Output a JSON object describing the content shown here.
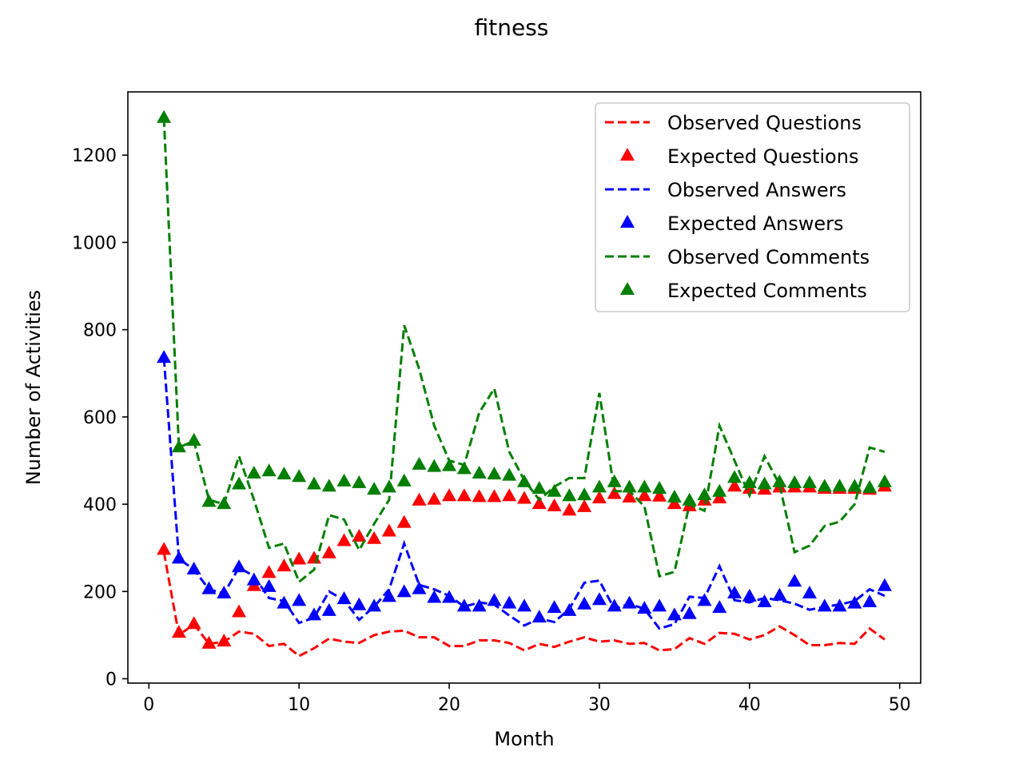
{
  "chart_data": {
    "type": "line",
    "title": "fitness",
    "xlabel": "Month",
    "ylabel": "Number of Activities",
    "xlim": [
      -1.4,
      51.4
    ],
    "ylim": [
      -10,
      1345
    ],
    "xticks": [
      0,
      10,
      20,
      30,
      40,
      50
    ],
    "yticks": [
      0,
      200,
      400,
      600,
      800,
      1000,
      1200
    ],
    "grid": false,
    "legend_position": "top-right",
    "x": [
      1,
      2,
      3,
      4,
      5,
      6,
      7,
      8,
      9,
      10,
      11,
      12,
      13,
      14,
      15,
      16,
      17,
      18,
      19,
      20,
      21,
      22,
      23,
      24,
      25,
      26,
      27,
      28,
      29,
      30,
      31,
      32,
      33,
      34,
      35,
      36,
      37,
      38,
      39,
      40,
      41,
      42,
      43,
      44,
      45,
      46,
      47,
      48,
      49
    ],
    "series": [
      {
        "name": "Observed Questions",
        "style": "dashed",
        "color": "#ff0000",
        "values": [
          290,
          100,
          125,
          80,
          85,
          108,
          103,
          75,
          80,
          52,
          70,
          92,
          85,
          82,
          100,
          108,
          110,
          95,
          95,
          75,
          75,
          88,
          88,
          82,
          65,
          80,
          73,
          85,
          95,
          85,
          88,
          80,
          82,
          65,
          68,
          93,
          80,
          105,
          103,
          90,
          100,
          120,
          100,
          77,
          77,
          82,
          80,
          115,
          90
        ]
      },
      {
        "name": "Expected Questions",
        "style": "marker",
        "color": "#ff0000",
        "values": [
          295,
          105,
          125,
          80,
          85,
          152,
          212,
          242,
          257,
          273,
          275,
          287,
          315,
          325,
          320,
          337,
          357,
          408,
          410,
          418,
          418,
          416,
          416,
          418,
          412,
          400,
          395,
          385,
          393,
          413,
          423,
          415,
          418,
          417,
          400,
          395,
          408,
          413,
          440,
          435,
          433,
          438,
          438,
          438,
          435,
          435,
          435,
          433,
          440
        ]
      },
      {
        "name": "Observed Answers",
        "style": "dashed",
        "color": "#0000ff",
        "values": [
          735,
          275,
          250,
          205,
          195,
          255,
          235,
          185,
          178,
          128,
          140,
          200,
          180,
          135,
          165,
          205,
          310,
          215,
          205,
          190,
          165,
          175,
          170,
          145,
          122,
          138,
          130,
          160,
          220,
          225,
          160,
          172,
          160,
          115,
          125,
          188,
          185,
          258,
          180,
          175,
          185,
          180,
          172,
          158,
          165,
          170,
          178,
          205,
          190
        ]
      },
      {
        "name": "Expected Answers",
        "style": "marker",
        "color": "#0000ff",
        "values": [
          735,
          275,
          250,
          205,
          195,
          255,
          225,
          210,
          172,
          178,
          145,
          155,
          182,
          168,
          165,
          187,
          198,
          205,
          185,
          185,
          165,
          165,
          178,
          172,
          165,
          140,
          162,
          155,
          170,
          180,
          165,
          172,
          160,
          165,
          145,
          148,
          178,
          162,
          195,
          188,
          175,
          190,
          222,
          195,
          165,
          165,
          172,
          175,
          212
        ]
      },
      {
        "name": "Observed Comments",
        "style": "dashed",
        "color": "#007f00",
        "values": [
          1285,
          530,
          545,
          410,
          400,
          510,
          410,
          300,
          310,
          222,
          250,
          375,
          365,
          295,
          355,
          410,
          810,
          710,
          580,
          500,
          490,
          610,
          665,
          520,
          455,
          410,
          440,
          460,
          460,
          655,
          430,
          430,
          395,
          235,
          245,
          400,
          385,
          580,
          500,
          420,
          510,
          445,
          290,
          305,
          350,
          360,
          400,
          530,
          520
        ]
      },
      {
        "name": "Expected Comments",
        "style": "marker",
        "color": "#007f00",
        "values": [
          1285,
          530,
          545,
          405,
          400,
          445,
          470,
          475,
          468,
          462,
          445,
          440,
          452,
          448,
          433,
          438,
          452,
          490,
          485,
          487,
          480,
          470,
          468,
          465,
          450,
          435,
          428,
          418,
          420,
          438,
          450,
          438,
          438,
          435,
          415,
          408,
          420,
          428,
          460,
          448,
          445,
          450,
          448,
          448,
          440,
          440,
          440,
          437,
          450
        ]
      }
    ]
  }
}
